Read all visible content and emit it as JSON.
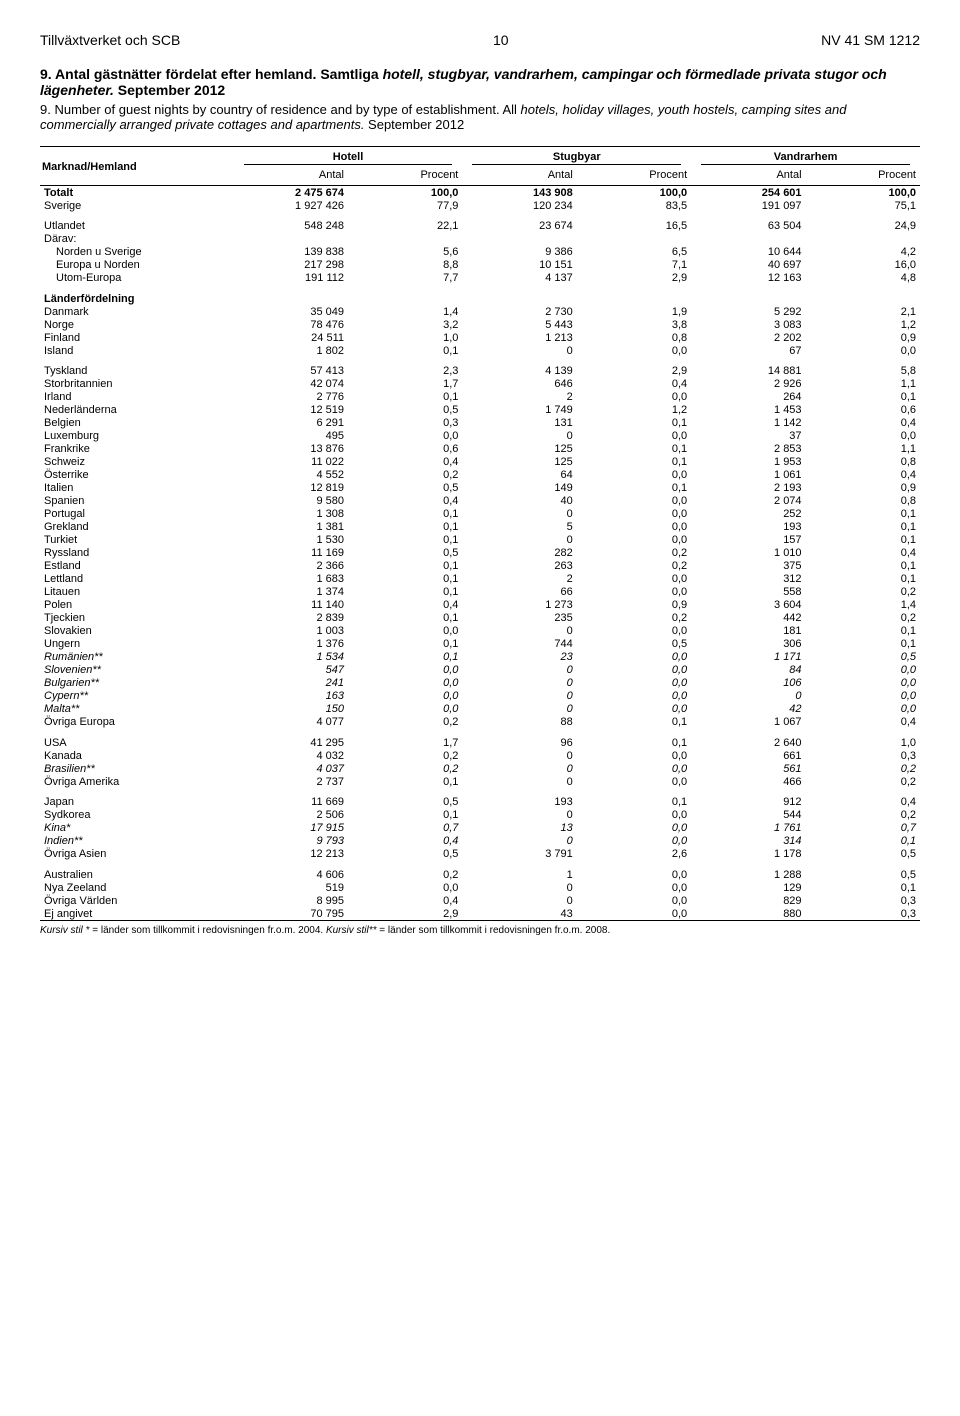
{
  "header": {
    "left": "Tillväxtverket och SCB",
    "page": "10",
    "right": "NV 41 SM 1212"
  },
  "title_sv": {
    "num": "9. Antal gästnätter fördelat efter hemland. Samtliga ",
    "italic": "hotell, stugbyar, vandrarhem, campingar och förmedlade privata stugor och lägenheter.",
    "tail": " September 2012"
  },
  "title_en": {
    "num": "9. Number of guest nights by country of residence and by type of establishment. All ",
    "italic": "hotels, holiday villages, youth hostels, camping sites and commercially arranged private cottages and apartments.",
    "tail": " September 2012"
  },
  "col_groups": [
    "Hotell",
    "Stugbyar",
    "Vandrarhem"
  ],
  "row_header": "Marknad/Hemland",
  "sub_headers": [
    "Antal",
    "Procent",
    "Antal",
    "Procent",
    "Antal",
    "Procent"
  ],
  "rows": [
    {
      "label": "Totalt",
      "vals": [
        "2 475 674",
        "100,0",
        "143 908",
        "100,0",
        "254 601",
        "100,0"
      ],
      "bold": true
    },
    {
      "label": "Sverige",
      "vals": [
        "1 927 426",
        "77,9",
        "120 234",
        "83,5",
        "191 097",
        "75,1"
      ]
    },
    {
      "label": "Utlandet",
      "vals": [
        "548 248",
        "22,1",
        "23 674",
        "16,5",
        "63 504",
        "24,9"
      ],
      "gap": true
    },
    {
      "label": "Därav:",
      "vals": [
        "",
        "",
        "",
        "",
        "",
        ""
      ]
    },
    {
      "label": "Norden u Sverige",
      "vals": [
        "139 838",
        "5,6",
        "9 386",
        "6,5",
        "10 644",
        "4,2"
      ],
      "sub": true
    },
    {
      "label": "Europa u Norden",
      "vals": [
        "217 298",
        "8,8",
        "10 151",
        "7,1",
        "40 697",
        "16,0"
      ],
      "sub": true
    },
    {
      "label": "Utom-Europa",
      "vals": [
        "191 112",
        "7,7",
        "4 137",
        "2,9",
        "12 163",
        "4,8"
      ],
      "sub": true
    },
    {
      "label": "Länderfördelning",
      "vals": [
        "",
        "",
        "",
        "",
        "",
        ""
      ],
      "bold": true,
      "gap": true
    },
    {
      "label": "Danmark",
      "vals": [
        "35 049",
        "1,4",
        "2 730",
        "1,9",
        "5 292",
        "2,1"
      ]
    },
    {
      "label": "Norge",
      "vals": [
        "78 476",
        "3,2",
        "5 443",
        "3,8",
        "3 083",
        "1,2"
      ]
    },
    {
      "label": "Finland",
      "vals": [
        "24 511",
        "1,0",
        "1 213",
        "0,8",
        "2 202",
        "0,9"
      ]
    },
    {
      "label": "Island",
      "vals": [
        "1 802",
        "0,1",
        "0",
        "0,0",
        "67",
        "0,0"
      ]
    },
    {
      "label": "Tyskland",
      "vals": [
        "57 413",
        "2,3",
        "4 139",
        "2,9",
        "14 881",
        "5,8"
      ],
      "gap": true
    },
    {
      "label": "Storbritannien",
      "vals": [
        "42 074",
        "1,7",
        "646",
        "0,4",
        "2 926",
        "1,1"
      ]
    },
    {
      "label": "Irland",
      "vals": [
        "2 776",
        "0,1",
        "2",
        "0,0",
        "264",
        "0,1"
      ]
    },
    {
      "label": "Nederländerna",
      "vals": [
        "12 519",
        "0,5",
        "1 749",
        "1,2",
        "1 453",
        "0,6"
      ]
    },
    {
      "label": "Belgien",
      "vals": [
        "6 291",
        "0,3",
        "131",
        "0,1",
        "1 142",
        "0,4"
      ]
    },
    {
      "label": "Luxemburg",
      "vals": [
        "495",
        "0,0",
        "0",
        "0,0",
        "37",
        "0,0"
      ]
    },
    {
      "label": "Frankrike",
      "vals": [
        "13 876",
        "0,6",
        "125",
        "0,1",
        "2 853",
        "1,1"
      ]
    },
    {
      "label": "Schweiz",
      "vals": [
        "11 022",
        "0,4",
        "125",
        "0,1",
        "1 953",
        "0,8"
      ]
    },
    {
      "label": "Österrike",
      "vals": [
        "4 552",
        "0,2",
        "64",
        "0,0",
        "1 061",
        "0,4"
      ]
    },
    {
      "label": "Italien",
      "vals": [
        "12 819",
        "0,5",
        "149",
        "0,1",
        "2 193",
        "0,9"
      ]
    },
    {
      "label": "Spanien",
      "vals": [
        "9 580",
        "0,4",
        "40",
        "0,0",
        "2 074",
        "0,8"
      ]
    },
    {
      "label": "Portugal",
      "vals": [
        "1 308",
        "0,1",
        "0",
        "0,0",
        "252",
        "0,1"
      ]
    },
    {
      "label": "Grekland",
      "vals": [
        "1 381",
        "0,1",
        "5",
        "0,0",
        "193",
        "0,1"
      ]
    },
    {
      "label": "Turkiet",
      "vals": [
        "1 530",
        "0,1",
        "0",
        "0,0",
        "157",
        "0,1"
      ]
    },
    {
      "label": "Ryssland",
      "vals": [
        "11 169",
        "0,5",
        "282",
        "0,2",
        "1 010",
        "0,4"
      ]
    },
    {
      "label": "Estland",
      "vals": [
        "2 366",
        "0,1",
        "263",
        "0,2",
        "375",
        "0,1"
      ]
    },
    {
      "label": "Lettland",
      "vals": [
        "1 683",
        "0,1",
        "2",
        "0,0",
        "312",
        "0,1"
      ]
    },
    {
      "label": "Litauen",
      "vals": [
        "1 374",
        "0,1",
        "66",
        "0,0",
        "558",
        "0,2"
      ]
    },
    {
      "label": "Polen",
      "vals": [
        "11 140",
        "0,4",
        "1 273",
        "0,9",
        "3 604",
        "1,4"
      ]
    },
    {
      "label": "Tjeckien",
      "vals": [
        "2 839",
        "0,1",
        "235",
        "0,2",
        "442",
        "0,2"
      ]
    },
    {
      "label": "Slovakien",
      "vals": [
        "1 003",
        "0,0",
        "0",
        "0,0",
        "181",
        "0,1"
      ]
    },
    {
      "label": "Ungern",
      "vals": [
        "1 376",
        "0,1",
        "744",
        "0,5",
        "306",
        "0,1"
      ]
    },
    {
      "label": "Rumänien**",
      "vals": [
        "1 534",
        "0,1",
        "23",
        "0,0",
        "1 171",
        "0,5"
      ],
      "italic": true
    },
    {
      "label": "Slovenien**",
      "vals": [
        "547",
        "0,0",
        "0",
        "0,0",
        "84",
        "0,0"
      ],
      "italic": true
    },
    {
      "label": "Bulgarien**",
      "vals": [
        "241",
        "0,0",
        "0",
        "0,0",
        "106",
        "0,0"
      ],
      "italic": true
    },
    {
      "label": "Cypern**",
      "vals": [
        "163",
        "0,0",
        "0",
        "0,0",
        "0",
        "0,0"
      ],
      "italic": true
    },
    {
      "label": "Malta**",
      "vals": [
        "150",
        "0,0",
        "0",
        "0,0",
        "42",
        "0,0"
      ],
      "italic": true
    },
    {
      "label": "Övriga Europa",
      "vals": [
        "4 077",
        "0,2",
        "88",
        "0,1",
        "1 067",
        "0,4"
      ]
    },
    {
      "label": "USA",
      "vals": [
        "41 295",
        "1,7",
        "96",
        "0,1",
        "2 640",
        "1,0"
      ],
      "gap": true
    },
    {
      "label": "Kanada",
      "vals": [
        "4 032",
        "0,2",
        "0",
        "0,0",
        "661",
        "0,3"
      ]
    },
    {
      "label": "Brasilien**",
      "vals": [
        "4 037",
        "0,2",
        "0",
        "0,0",
        "561",
        "0,2"
      ],
      "italic": true
    },
    {
      "label": "Övriga Amerika",
      "vals": [
        "2 737",
        "0,1",
        "0",
        "0,0",
        "466",
        "0,2"
      ]
    },
    {
      "label": "Japan",
      "vals": [
        "11 669",
        "0,5",
        "193",
        "0,1",
        "912",
        "0,4"
      ],
      "gap": true
    },
    {
      "label": "Sydkorea",
      "vals": [
        "2 506",
        "0,1",
        "0",
        "0,0",
        "544",
        "0,2"
      ]
    },
    {
      "label": "Kina*",
      "vals": [
        "17 915",
        "0,7",
        "13",
        "0,0",
        "1 761",
        "0,7"
      ],
      "italic": true
    },
    {
      "label": "Indien**",
      "vals": [
        "9 793",
        "0,4",
        "0",
        "0,0",
        "314",
        "0,1"
      ],
      "italic": true
    },
    {
      "label": "Övriga Asien",
      "vals": [
        "12 213",
        "0,5",
        "3 791",
        "2,6",
        "1 178",
        "0,5"
      ]
    },
    {
      "label": "Australien",
      "vals": [
        "4 606",
        "0,2",
        "1",
        "0,0",
        "1 288",
        "0,5"
      ],
      "gap": true
    },
    {
      "label": "Nya Zeeland",
      "vals": [
        "519",
        "0,0",
        "0",
        "0,0",
        "129",
        "0,1"
      ]
    },
    {
      "label": "Övriga Världen",
      "vals": [
        "8 995",
        "0,4",
        "0",
        "0,0",
        "829",
        "0,3"
      ]
    },
    {
      "label": "Ej angivet",
      "vals": [
        "70 795",
        "2,9",
        "43",
        "0,0",
        "880",
        "0,3"
      ],
      "last": true
    }
  ],
  "footnote": {
    "p1_i": "Kursiv stil *",
    "p1": " = länder som tillkommit i redovisningen fr.o.m. 2004. ",
    "p2_i": "Kursiv stil**",
    "p2": " = länder som tillkommit i redovisningen fr.o.m. 2008."
  }
}
